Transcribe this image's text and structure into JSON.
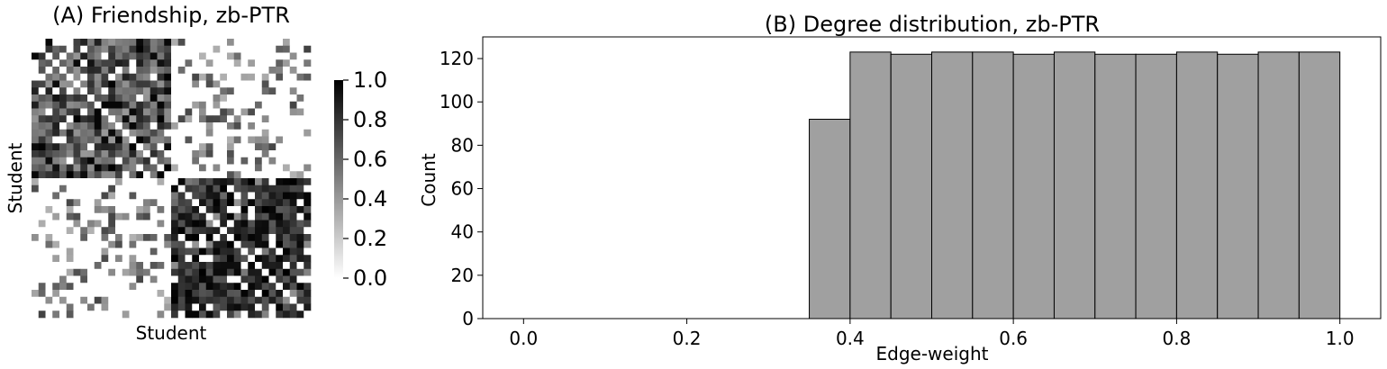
{
  "chart_data": [
    {
      "type": "heatmap",
      "title": "(A) Friendship, zb-PTR",
      "xlabel": "Student",
      "ylabel": "Student",
      "grid_size": 40,
      "groups": [
        20,
        20
      ],
      "colorbar": {
        "range": [
          0.0,
          1.0
        ],
        "ticks": [
          "0.0",
          "0.2",
          "0.4",
          "0.6",
          "0.8",
          "1.0"
        ],
        "colormap": "white-to-black"
      },
      "colors": {
        "low": "#ffffff",
        "high": "#000000"
      }
    },
    {
      "type": "bar",
      "title": "(B) Degree distribution, zb-PTR",
      "xlabel": "Edge-weight",
      "ylabel": "Count",
      "xlim": [
        -0.05,
        1.05
      ],
      "ylim": [
        0,
        130
      ],
      "xticks": [
        "0.0",
        "0.2",
        "0.4",
        "0.6",
        "0.8",
        "1.0"
      ],
      "yticks": [
        "0",
        "20",
        "40",
        "60",
        "80",
        "100",
        "120"
      ],
      "bin_width": 0.05,
      "bins": [
        {
          "x0": 0.35,
          "count": 92
        },
        {
          "x0": 0.4,
          "count": 123
        },
        {
          "x0": 0.45,
          "count": 122
        },
        {
          "x0": 0.5,
          "count": 123
        },
        {
          "x0": 0.55,
          "count": 123
        },
        {
          "x0": 0.6,
          "count": 122
        },
        {
          "x0": 0.65,
          "count": 123
        },
        {
          "x0": 0.7,
          "count": 122
        },
        {
          "x0": 0.75,
          "count": 122
        },
        {
          "x0": 0.8,
          "count": 123
        },
        {
          "x0": 0.85,
          "count": 122
        },
        {
          "x0": 0.9,
          "count": 123
        },
        {
          "x0": 0.95,
          "count": 123
        }
      ],
      "colors": {
        "bar_fill": "#a0a0a0",
        "bar_edge": "#000000"
      }
    }
  ]
}
